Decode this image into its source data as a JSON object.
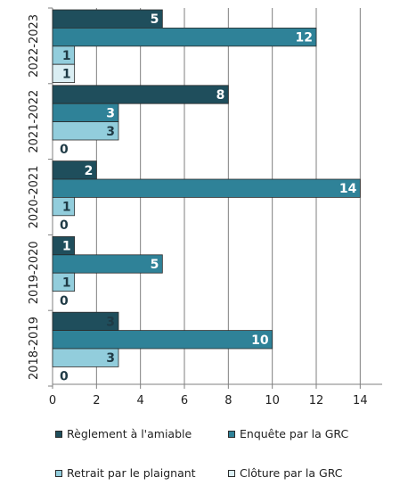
{
  "chart_data": {
    "type": "bar",
    "orientation": "horizontal",
    "categories": [
      "2022-2023",
      "2021-2022",
      "2020-2021",
      "2019-2020",
      "2018-2019"
    ],
    "series": [
      {
        "name": "Règlement à l'amiable",
        "values": [
          5,
          8,
          2,
          1,
          3
        ],
        "color": "#1f4e5c"
      },
      {
        "name": "Enquête par la GRC",
        "values": [
          12,
          3,
          14,
          5,
          10
        ],
        "color": "#2f8298"
      },
      {
        "name": "Retrait par le plaignant",
        "values": [
          1,
          3,
          1,
          1,
          3
        ],
        "color": "#92cddc"
      },
      {
        "name": "Clôture par la GRC",
        "values": [
          1,
          0,
          0,
          0,
          0
        ],
        "color": "#daeef3"
      }
    ],
    "xlim": [
      0,
      15
    ],
    "xticks": [
      "0",
      "2",
      "4",
      "6",
      "8",
      "10",
      "12",
      "14"
    ],
    "grid": true,
    "legend_position": "bottom"
  }
}
